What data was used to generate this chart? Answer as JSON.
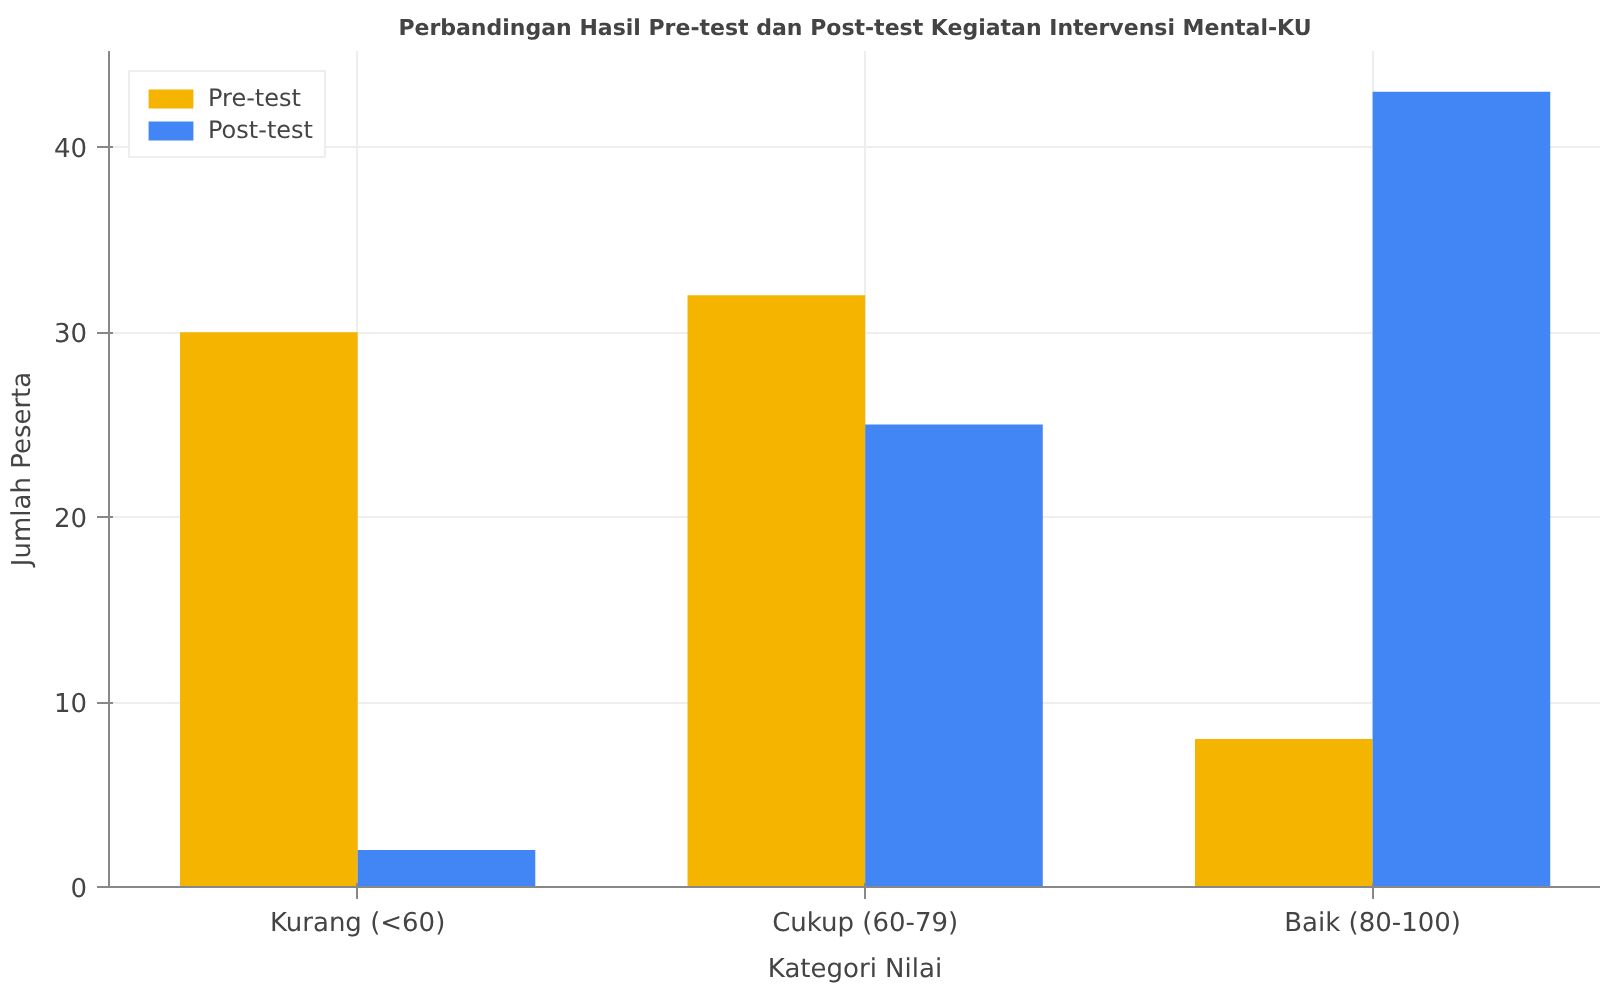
{
  "chart_data": {
    "type": "bar",
    "title": "Perbandingan Hasil Pre-test dan Post-test Kegiatan Intervensi Mental-KU",
    "xlabel": "Kategori Nilai",
    "ylabel": "Jumlah Peserta",
    "categories": [
      "Kurang (<60)",
      "Cukup (60-79)",
      "Baik (80-100)"
    ],
    "series": [
      {
        "name": "Pre-test",
        "color": "#f4b400",
        "values": [
          30,
          32,
          8
        ]
      },
      {
        "name": "Post-test",
        "color": "#4285f4",
        "values": [
          2,
          25,
          43
        ]
      }
    ],
    "ylim": [
      0,
      45.2
    ],
    "yticks": [
      0,
      10,
      20,
      30,
      40
    ],
    "grid": true,
    "legend": "top left"
  }
}
